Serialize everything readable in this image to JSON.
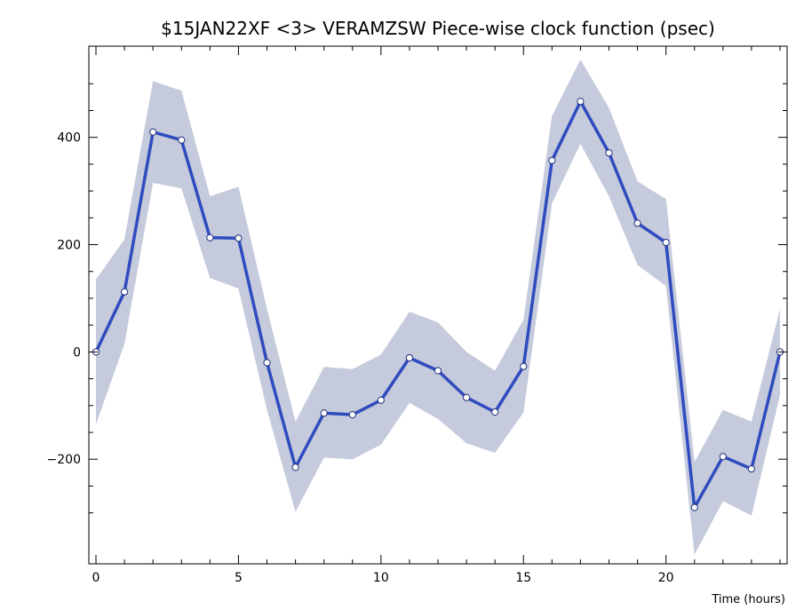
{
  "chart_data": {
    "type": "line",
    "title": "$15JAN22XF <3>  VERAMZSW  Piece-wise clock function (psec)",
    "xlabel": "Time (hours)",
    "ylabel": "",
    "xlim": [
      -0.25,
      24.25
    ],
    "ylim": [
      -395,
      570
    ],
    "xticks": [
      0,
      5,
      10,
      15,
      20
    ],
    "yticks": [
      -200,
      0,
      200,
      400
    ],
    "xtick_labels": [
      "0",
      "5",
      "10",
      "15",
      "20"
    ],
    "ytick_labels": [
      "−200",
      "0",
      "200",
      "400"
    ],
    "grid": false,
    "colors": {
      "line": "#2f4bbf",
      "band": "#c5cadc",
      "marker_fill": "#ffffff"
    },
    "series": [
      {
        "x": [
          0,
          1,
          2,
          3,
          4,
          5,
          6,
          7,
          8,
          9,
          10,
          11,
          12,
          13,
          14,
          15,
          16,
          17,
          18,
          19,
          20,
          21,
          22,
          23,
          24
        ],
        "values": [
          0,
          112,
          410,
          395,
          213,
          212,
          -20,
          -215,
          -114,
          -117,
          -90,
          -11,
          -35,
          -85,
          -112,
          -27,
          357,
          467,
          371,
          240,
          204,
          -290,
          -195,
          -218,
          0
        ],
        "upper": [
          135,
          210,
          505,
          487,
          290,
          308,
          80,
          -130,
          -28,
          -32,
          -5,
          75,
          55,
          0,
          -35,
          60,
          440,
          545,
          455,
          318,
          285,
          -205,
          -108,
          -130,
          80
        ],
        "lower": [
          -135,
          15,
          315,
          305,
          138,
          118,
          -108,
          -298,
          -197,
          -200,
          -173,
          -95,
          -125,
          -170,
          -188,
          -113,
          277,
          388,
          290,
          162,
          123,
          -378,
          -278,
          -305,
          -80
        ]
      }
    ]
  }
}
